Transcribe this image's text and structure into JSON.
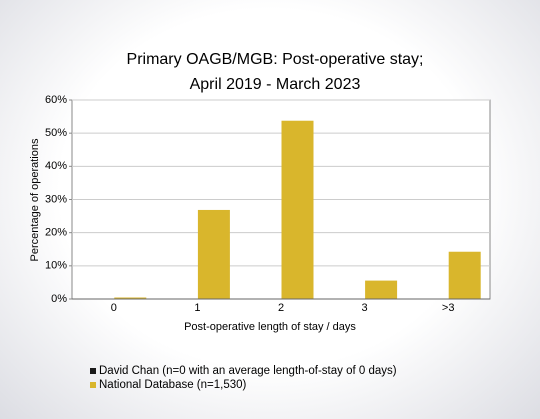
{
  "chart_data": {
    "type": "bar",
    "title": "Primary OAGB/MGB: Post-operative stay;",
    "subtitle": "April 2019 - March 2023",
    "x_label": "Post-operative length of stay / days",
    "y_label": "Percentage of operations",
    "categories": [
      "0",
      "1",
      "2",
      "3",
      ">3"
    ],
    "series": [
      {
        "name": "David Chan (n=0 with an average length-of-stay of 0 days)",
        "color": "#1a1a1a",
        "values": [
          0,
          0,
          0,
          0,
          0
        ]
      },
      {
        "name": "National Database (n=1,530)",
        "color": "#d9b62c",
        "values": [
          0.3,
          26.7,
          53.6,
          5.4,
          14.1
        ]
      }
    ],
    "ylim": [
      0,
      60
    ],
    "yticks": [
      {
        "value": 0,
        "label": "0%"
      },
      {
        "value": 10,
        "label": "10%"
      },
      {
        "value": 20,
        "label": "20%"
      },
      {
        "value": 30,
        "label": "30%"
      },
      {
        "value": 40,
        "label": "40%"
      },
      {
        "value": 50,
        "label": "50%"
      },
      {
        "value": 60,
        "label": "60%"
      }
    ],
    "grid": true
  }
}
